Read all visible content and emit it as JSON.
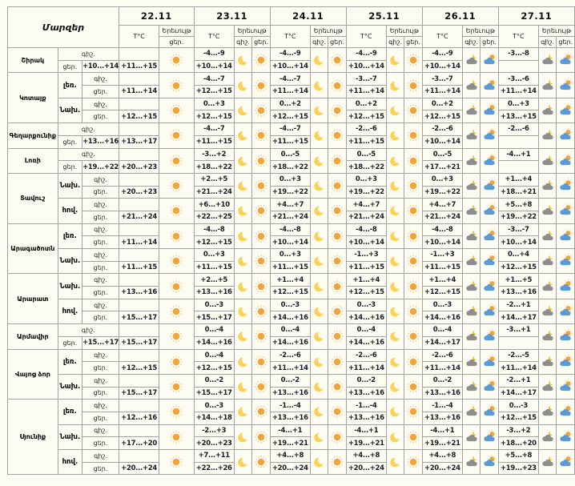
{
  "table": {
    "regions_label": "Մարզեր",
    "temp_label": "T°C",
    "phenomenon_label": "Երեւույթ",
    "night_label": "գիշ.",
    "day_label": "ցեր.",
    "dates": [
      {
        "label": "22.11",
        "night_icon": null,
        "day_icon": "sun"
      },
      {
        "label": "23.11",
        "night_icon": "moon",
        "day_icon": "sun"
      },
      {
        "label": "24.11",
        "night_icon": "moon",
        "day_icon": "sun"
      },
      {
        "label": "25.11",
        "night_icon": "moon",
        "day_icon": "sun"
      },
      {
        "label": "26.11",
        "night_icon": "cloud-moon",
        "day_icon": "cloud-sun"
      },
      {
        "label": "27.11",
        "night_icon": "cloud-moon",
        "day_icon": "cloud-sun"
      }
    ],
    "regions": [
      {
        "name": "Շիրակ",
        "zones": [
          {
            "label": "",
            "night": [
              "",
              "-4...-9",
              "-4...-9",
              "-4...-9",
              "-4...-9",
              "-3...-8"
            ],
            "day": [
              "+10...+14",
              "+11...+15",
              "+10...+14",
              "+10...+14",
              "+10...+14",
              "+10...+14"
            ]
          }
        ]
      },
      {
        "name": "Կոտայք",
        "zones": [
          {
            "label": "լեռ.",
            "night": [
              "",
              "-4...-7",
              "-4...-7",
              "-3...-7",
              "-3...-7",
              "-3...-6"
            ],
            "day": [
              "+11...+14",
              "+12...+15",
              "+11...+14",
              "+11...+14",
              "+11...+14",
              "+11...+14"
            ]
          },
          {
            "label": "Նախ.",
            "night": [
              "",
              "0...+3",
              "0...+2",
              "0...+2",
              "0...+2",
              "0...+3"
            ],
            "day": [
              "+12...+15",
              "+12...+15",
              "+12...+15",
              "+12...+15",
              "+12...+15",
              "+13...+15"
            ]
          }
        ]
      },
      {
        "name": "Գեղարքունիք",
        "zones": [
          {
            "label": "",
            "night": [
              "",
              "-4...-7",
              "-4...-7",
              "-2...-6",
              "-2...-6",
              "-2...-6"
            ],
            "day": [
              "+13...+16",
              "+13...+17",
              "+11...+15",
              "+11...+15",
              "+11...+15",
              "+10...+14"
            ]
          }
        ]
      },
      {
        "name": "Լոռի",
        "zones": [
          {
            "label": "",
            "night": [
              "",
              "-3...+2",
              "0...-5",
              "0...-5",
              "0...-5",
              "-4...+1"
            ],
            "day": [
              "+19...+22",
              "+20...+23",
              "+18...+22",
              "+18...+22",
              "+18...+22",
              "+17...+21"
            ]
          }
        ]
      },
      {
        "name": "Տավուշ",
        "zones": [
          {
            "label": "Նախ.",
            "night": [
              "",
              "+2...+5",
              "0...+3",
              "0...+3",
              "0...+3",
              "+1...+4"
            ],
            "day": [
              "+20...+23",
              "+21...+24",
              "+19...+22",
              "+19...+22",
              "+19...+22",
              "+18...+21"
            ]
          },
          {
            "label": "հով.",
            "night": [
              "",
              "+6...+10",
              "+4...+7",
              "+4...+7",
              "+4...+7",
              "+5...+8"
            ],
            "day": [
              "+21...+24",
              "+22...+25",
              "+21...+24",
              "+21...+24",
              "+21...+24",
              "+19...+22"
            ]
          }
        ]
      },
      {
        "name": "Արագածոտն",
        "zones": [
          {
            "label": "լեռ.",
            "night": [
              "",
              "-4...-8",
              "-4...-8",
              "-4...-8",
              "-4...-8",
              "-3...-7"
            ],
            "day": [
              "+11...+14",
              "+12...+15",
              "+10...+14",
              "+10...+14",
              "+10...+14",
              "+10...+14"
            ]
          },
          {
            "label": "Նախ.",
            "night": [
              "",
              "0...+3",
              "0...+3",
              "-1...+3",
              "-1...+3",
              "0...+4"
            ],
            "day": [
              "+11...+15",
              "+11...+15",
              "+11...+15",
              "+11...+15",
              "+11...+15",
              "+12...+15"
            ]
          }
        ]
      },
      {
        "name": "Արարատ",
        "zones": [
          {
            "label": "Նախ.",
            "night": [
              "",
              "+2...+5",
              "+1...+4",
              "+1...+4",
              "+1...+4",
              "+1...+5"
            ],
            "day": [
              "+13...+16",
              "+13...+16",
              "+12...+15",
              "+12...+15",
              "+12...+15",
              "+13...+16"
            ]
          },
          {
            "label": "հով.",
            "night": [
              "",
              "0...-3",
              "0...-3",
              "0...-3",
              "0...-3",
              "-2...+1"
            ],
            "day": [
              "+15...+17",
              "+15...+17",
              "+14...+16",
              "+14...+16",
              "+14...+16",
              "+14...+17"
            ]
          }
        ]
      },
      {
        "name": "Արմավիր",
        "zones": [
          {
            "label": "",
            "night": [
              "",
              "0...-4",
              "0...-4",
              "0...-4",
              "0...-4",
              "-3...+1"
            ],
            "day": [
              "+15...+17",
              "+15...+17",
              "+14...+16",
              "+14...+16",
              "+14...+16",
              "+14...+17"
            ]
          }
        ]
      },
      {
        "name": "Վայոց ձոր",
        "zones": [
          {
            "label": "լեռ.",
            "night": [
              "",
              "0...-4",
              "-2...-6",
              "-2...-6",
              "-2...-6",
              "-2...-5"
            ],
            "day": [
              "+12...+15",
              "+12...+15",
              "+11...+14",
              "+11...+14",
              "+11...+14",
              "+11...+14"
            ]
          },
          {
            "label": "Նախ.",
            "night": [
              "",
              "0...-2",
              "0...-2",
              "0...-2",
              "0...-2",
              "-2...+1"
            ],
            "day": [
              "+15...+17",
              "+15...+17",
              "+13...+16",
              "+13...+16",
              "+13...+16",
              "+14...+17"
            ]
          }
        ]
      },
      {
        "name": "Սյունիք",
        "zones": [
          {
            "label": "լեռ.",
            "night": [
              "",
              "0...-3",
              "-1...-4",
              "-1...-4",
              "-1...-4",
              "0...-3"
            ],
            "day": [
              "+12...+16",
              "+14...+18",
              "+13...+16",
              "+13...+16",
              "+13...+16",
              "+12...+15"
            ]
          },
          {
            "label": "Նախ.",
            "night": [
              "",
              "-2...+3",
              "-4...+1",
              "-4...+1",
              "-4...+1",
              "-3...+2"
            ],
            "day": [
              "+17...+20",
              "+20...+23",
              "+19...+21",
              "+19...+21",
              "+19...+21",
              "+18...+20"
            ]
          },
          {
            "label": "հով.",
            "night": [
              "",
              "+7...+11",
              "+4...+8",
              "+4...+8",
              "+4...+8",
              "+5...+8"
            ],
            "day": [
              "+20...+24",
              "+22...+26",
              "+20...+24",
              "+20...+24",
              "+20...+24",
              "+19...+23"
            ]
          }
        ]
      }
    ]
  },
  "colors": {
    "background": "#fcfcf2",
    "border": "#a3a3a3",
    "temp_text": "#1b1b26",
    "sun": "#f0a43c",
    "sun_rays": "#f6cd92",
    "moon": "#fdd155",
    "small_moon": "#f3c234",
    "cloud_gray": "#8e8e8e",
    "cloud_blue": "#5b9bd5"
  }
}
